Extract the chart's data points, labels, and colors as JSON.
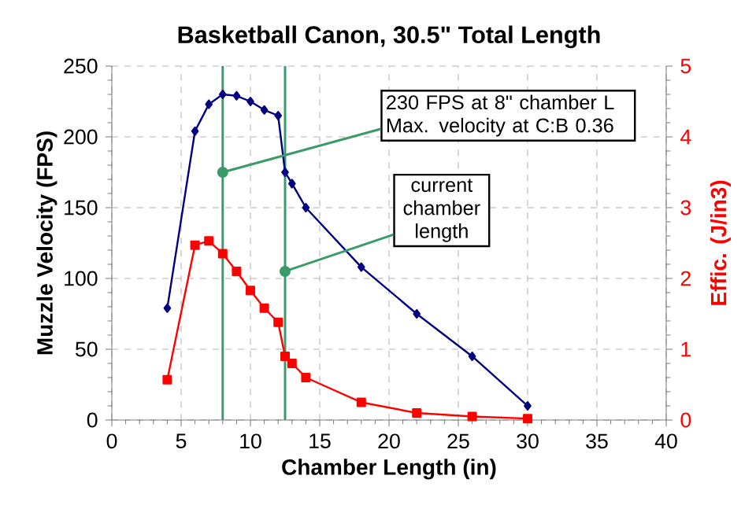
{
  "chart_data": {
    "type": "line",
    "title": "Basketball Canon, 30.5\" Total Length",
    "xlabel": "Chamber Length (in)",
    "ylabel": "Muzzle Velocity (FPS)",
    "y2label": "Effic. (J/in3)",
    "x": [
      4,
      6,
      7,
      8,
      9,
      10,
      11,
      12,
      12.5,
      13,
      14,
      18,
      22,
      26,
      30
    ],
    "series": [
      {
        "color": "#000080",
        "marker": "diamond",
        "values": [
          79,
          204,
          223,
          230,
          229,
          225,
          219,
          215,
          175,
          167,
          150,
          108,
          75,
          45,
          10
        ]
      },
      {
        "color": "#ff0000",
        "marker": "square",
        "axis": "y2",
        "values": [
          0.57,
          2.47,
          2.53,
          2.35,
          2.1,
          1.83,
          1.58,
          1.38,
          0.9,
          0.8,
          0.6,
          0.25,
          0.1,
          0.05,
          0.02
        ]
      }
    ],
    "xlim": [
      0,
      40
    ],
    "xticks": [
      0,
      5,
      10,
      15,
      20,
      25,
      30,
      35,
      40
    ],
    "ylim": [
      0,
      250
    ],
    "yticks": [
      0,
      50,
      100,
      150,
      200,
      250
    ],
    "y2lim": [
      0,
      5
    ],
    "y2ticks": [
      0,
      1,
      2,
      3,
      4,
      5
    ],
    "grid": true,
    "line_style": "solid",
    "ref_lines": [
      {
        "axis": "x",
        "value": 8,
        "color": "#3a9a6a"
      },
      {
        "axis": "x",
        "value": 12.5,
        "color": "#3a9a6a"
      }
    ],
    "annotations": [
      {
        "text": "230 FPS at 8\" chamber L Max. velocity at C:B 0.36",
        "x": 8,
        "y": 175
      },
      {
        "text": "current chamber length",
        "x": 12.5,
        "y": 105
      }
    ]
  }
}
